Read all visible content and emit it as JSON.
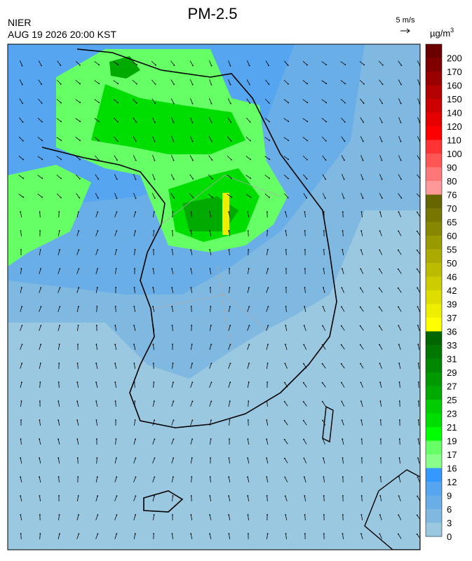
{
  "header": {
    "title": "PM-2.5",
    "agency": "NIER",
    "timestamp": "AUG 19 2026 20:00 KST",
    "wind_scale": "5 m/s",
    "unit": "µg/m",
    "unit_sup": "3"
  },
  "colorbar": {
    "labels": [
      200,
      170,
      160,
      150,
      140,
      120,
      110,
      100,
      90,
      80,
      76,
      70,
      65,
      60,
      55,
      50,
      46,
      42,
      39,
      37,
      36,
      33,
      31,
      29,
      27,
      25,
      23,
      21,
      19,
      17,
      16,
      12,
      9,
      6,
      3,
      0
    ],
    "colors": [
      "#6b0000",
      "#800000",
      "#990000",
      "#b30000",
      "#cc0000",
      "#e60000",
      "#ff0000",
      "#ff3333",
      "#ff5555",
      "#ff7777",
      "#ff9999",
      "#666600",
      "#777700",
      "#888800",
      "#999900",
      "#aaaa00",
      "#bbbb00",
      "#cccc00",
      "#dddd00",
      "#eeee00",
      "#ffff00",
      "#006600",
      "#007700",
      "#008800",
      "#009900",
      "#00aa00",
      "#00cc00",
      "#00dd00",
      "#00ff00",
      "#66ff66",
      "#88ff88",
      "#3399ff",
      "#55a5f0",
      "#6aaee8",
      "#7fb8e0",
      "#99c8e0"
    ]
  }
}
